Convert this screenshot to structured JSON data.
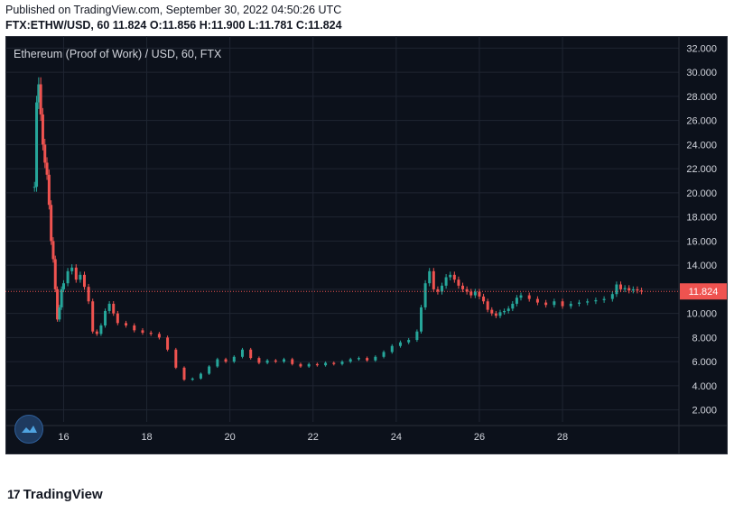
{
  "header": {
    "published": "Published on TradingView.com, September 30, 2022 04:50:26 UTC",
    "symbol": "FTX:ETHW/USD, 60",
    "last": "11.824",
    "o_label": "O:",
    "o": "11.856",
    "h_label": "H:",
    "h": "11.900",
    "l_label": "L:",
    "l": "11.781",
    "c_label": "C:",
    "c": "11.824"
  },
  "chart_data": {
    "type": "candlestick",
    "title": "Ethereum (Proof of Work) / USD, 60, FTX",
    "ylim": [
      1.0,
      33.0
    ],
    "y_ticks": [
      "2.000",
      "4.000",
      "6.000",
      "8.000",
      "10.000",
      "12.000",
      "14.000",
      "16.000",
      "18.000",
      "20.000",
      "22.000",
      "24.000",
      "26.000",
      "28.000",
      "30.000",
      "32.000"
    ],
    "x_ticks": [
      {
        "label": "16",
        "day": 16
      },
      {
        "label": "18",
        "day": 18
      },
      {
        "label": "20",
        "day": 20
      },
      {
        "label": "22",
        "day": 22
      },
      {
        "label": "24",
        "day": 24
      },
      {
        "label": "26",
        "day": 26
      },
      {
        "label": "28",
        "day": 28
      }
    ],
    "xlim_days": [
      14.6,
      30.8
    ],
    "last_price": 11.824,
    "last_price_label": "11.824",
    "series": [
      {
        "day": 15.3,
        "v": 20.5
      },
      {
        "day": 15.35,
        "v": 27.5
      },
      {
        "day": 15.4,
        "v": 29.0
      },
      {
        "day": 15.45,
        "v": 26.5
      },
      {
        "day": 15.5,
        "v": 24.0
      },
      {
        "day": 15.55,
        "v": 22.5
      },
      {
        "day": 15.6,
        "v": 21.5
      },
      {
        "day": 15.65,
        "v": 19.0
      },
      {
        "day": 15.7,
        "v": 16.0
      },
      {
        "day": 15.75,
        "v": 14.5
      },
      {
        "day": 15.8,
        "v": 12.0
      },
      {
        "day": 15.85,
        "v": 9.5
      },
      {
        "day": 15.9,
        "v": 10.5
      },
      {
        "day": 15.95,
        "v": 12.0
      },
      {
        "day": 16.0,
        "v": 12.5
      },
      {
        "day": 16.1,
        "v": 13.5
      },
      {
        "day": 16.2,
        "v": 13.8
      },
      {
        "day": 16.3,
        "v": 12.8
      },
      {
        "day": 16.4,
        "v": 13.2
      },
      {
        "day": 16.5,
        "v": 12.2
      },
      {
        "day": 16.6,
        "v": 11.0
      },
      {
        "day": 16.7,
        "v": 8.5
      },
      {
        "day": 16.8,
        "v": 8.3
      },
      {
        "day": 16.9,
        "v": 9.0
      },
      {
        "day": 17.0,
        "v": 10.2
      },
      {
        "day": 17.1,
        "v": 10.8
      },
      {
        "day": 17.2,
        "v": 10.0
      },
      {
        "day": 17.3,
        "v": 9.2
      },
      {
        "day": 17.5,
        "v": 9.0
      },
      {
        "day": 17.7,
        "v": 8.6
      },
      {
        "day": 17.9,
        "v": 8.4
      },
      {
        "day": 18.1,
        "v": 8.3
      },
      {
        "day": 18.3,
        "v": 8.0
      },
      {
        "day": 18.5,
        "v": 7.0
      },
      {
        "day": 18.7,
        "v": 5.5
      },
      {
        "day": 18.9,
        "v": 4.5
      },
      {
        "day": 19.1,
        "v": 4.6
      },
      {
        "day": 19.3,
        "v": 5.0
      },
      {
        "day": 19.5,
        "v": 5.6
      },
      {
        "day": 19.7,
        "v": 6.2
      },
      {
        "day": 19.9,
        "v": 6.0
      },
      {
        "day": 20.1,
        "v": 6.4
      },
      {
        "day": 20.3,
        "v": 7.0
      },
      {
        "day": 20.5,
        "v": 6.3
      },
      {
        "day": 20.7,
        "v": 5.9
      },
      {
        "day": 20.9,
        "v": 6.1
      },
      {
        "day": 21.1,
        "v": 6.0
      },
      {
        "day": 21.3,
        "v": 6.2
      },
      {
        "day": 21.5,
        "v": 5.8
      },
      {
        "day": 21.7,
        "v": 5.6
      },
      {
        "day": 21.9,
        "v": 5.8
      },
      {
        "day": 22.1,
        "v": 5.7
      },
      {
        "day": 22.3,
        "v": 5.9
      },
      {
        "day": 22.5,
        "v": 5.8
      },
      {
        "day": 22.7,
        "v": 6.0
      },
      {
        "day": 22.9,
        "v": 6.2
      },
      {
        "day": 23.1,
        "v": 6.3
      },
      {
        "day": 23.3,
        "v": 6.1
      },
      {
        "day": 23.5,
        "v": 6.4
      },
      {
        "day": 23.7,
        "v": 6.8
      },
      {
        "day": 23.9,
        "v": 7.3
      },
      {
        "day": 24.1,
        "v": 7.6
      },
      {
        "day": 24.3,
        "v": 7.8
      },
      {
        "day": 24.5,
        "v": 8.5
      },
      {
        "day": 24.6,
        "v": 10.5
      },
      {
        "day": 24.7,
        "v": 12.5
      },
      {
        "day": 24.8,
        "v": 13.5
      },
      {
        "day": 24.9,
        "v": 12.0
      },
      {
        "day": 25.0,
        "v": 11.8
      },
      {
        "day": 25.1,
        "v": 12.3
      },
      {
        "day": 25.2,
        "v": 13.0
      },
      {
        "day": 25.3,
        "v": 13.2
      },
      {
        "day": 25.4,
        "v": 12.8
      },
      {
        "day": 25.5,
        "v": 12.3
      },
      {
        "day": 25.6,
        "v": 12.0
      },
      {
        "day": 25.7,
        "v": 11.8
      },
      {
        "day": 25.8,
        "v": 11.5
      },
      {
        "day": 25.9,
        "v": 11.8
      },
      {
        "day": 26.0,
        "v": 11.4
      },
      {
        "day": 26.1,
        "v": 11.0
      },
      {
        "day": 26.2,
        "v": 10.3
      },
      {
        "day": 26.3,
        "v": 10.0
      },
      {
        "day": 26.4,
        "v": 9.8
      },
      {
        "day": 26.5,
        "v": 10.1
      },
      {
        "day": 26.6,
        "v": 10.2
      },
      {
        "day": 26.7,
        "v": 10.4
      },
      {
        "day": 26.8,
        "v": 10.8
      },
      {
        "day": 26.9,
        "v": 11.3
      },
      {
        "day": 27.0,
        "v": 11.5
      },
      {
        "day": 27.2,
        "v": 11.2
      },
      {
        "day": 27.4,
        "v": 10.9
      },
      {
        "day": 27.6,
        "v": 10.7
      },
      {
        "day": 27.8,
        "v": 11.0
      },
      {
        "day": 28.0,
        "v": 10.6
      },
      {
        "day": 28.2,
        "v": 10.8
      },
      {
        "day": 28.4,
        "v": 10.9
      },
      {
        "day": 28.6,
        "v": 11.0
      },
      {
        "day": 28.8,
        "v": 11.1
      },
      {
        "day": 29.0,
        "v": 11.2
      },
      {
        "day": 29.2,
        "v": 11.6
      },
      {
        "day": 29.3,
        "v": 12.4
      },
      {
        "day": 29.4,
        "v": 12.0
      },
      {
        "day": 29.5,
        "v": 12.1
      },
      {
        "day": 29.6,
        "v": 11.9
      },
      {
        "day": 29.7,
        "v": 12.0
      },
      {
        "day": 29.8,
        "v": 11.9
      },
      {
        "day": 29.9,
        "v": 11.82
      }
    ],
    "colors": {
      "up": "#26a69a",
      "down": "#ef5350",
      "background": "#0c111b",
      "grid": "#1f2532",
      "axis_text": "#d1d4dc",
      "price_line": "#ef5350"
    }
  },
  "footer": {
    "brand": "TradingView",
    "logo_mark": "17"
  },
  "icons": {
    "floating_logo": "tradingview-cloud-icon"
  }
}
